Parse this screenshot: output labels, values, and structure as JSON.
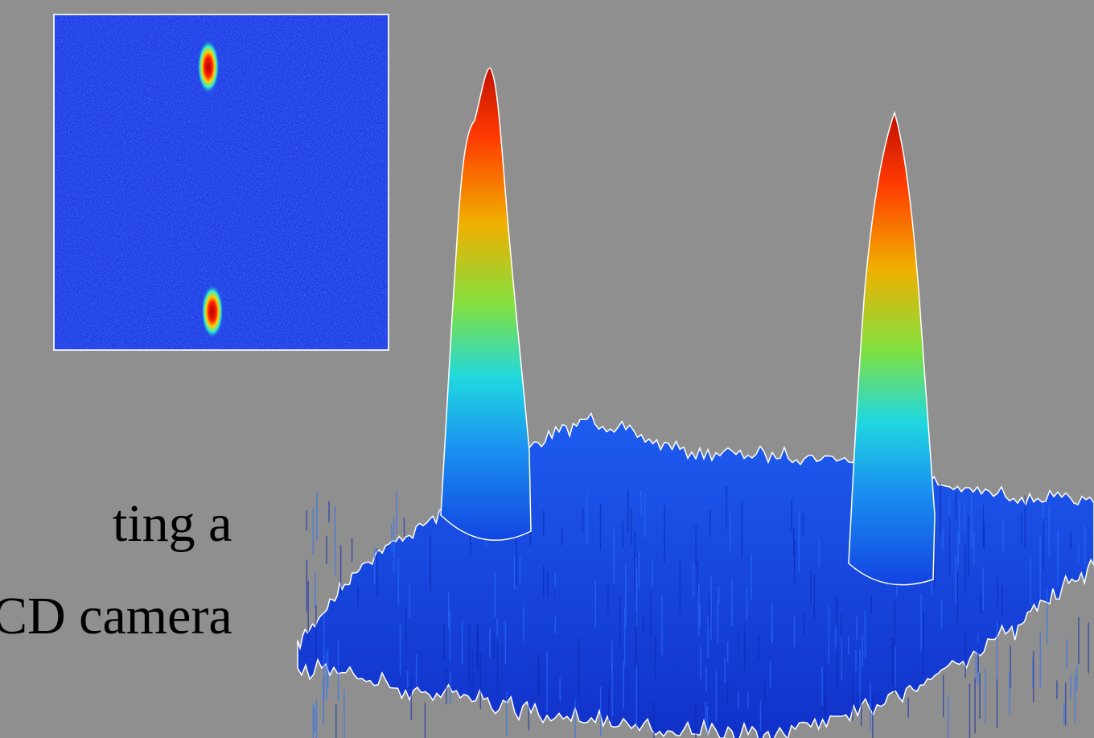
{
  "text": {
    "lines": [
      "ting a",
      "CD camera"
    ]
  }
}
